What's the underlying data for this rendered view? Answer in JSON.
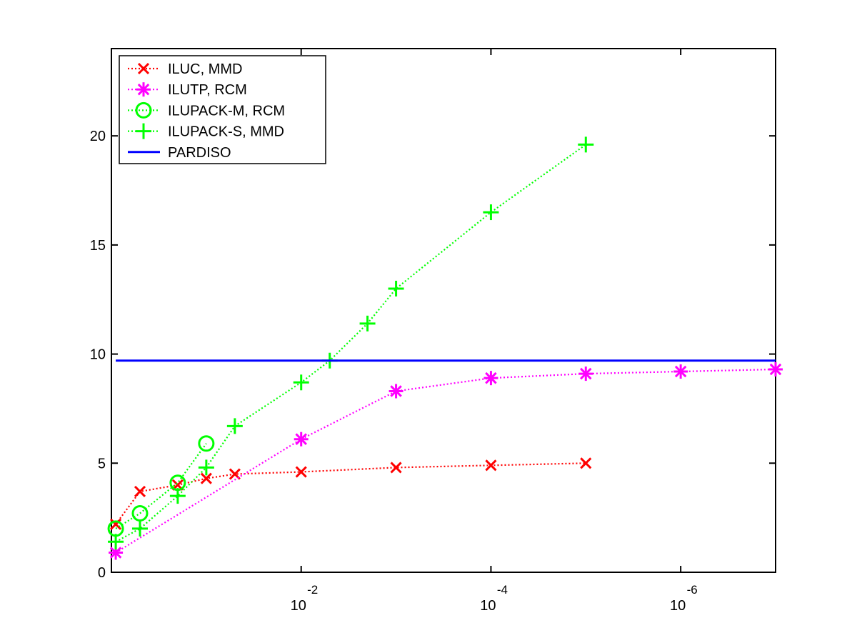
{
  "chart_data": {
    "type": "line",
    "title": "",
    "xlabel": "",
    "ylabel": "",
    "x_scale": "log-reversed",
    "xlim": [
      1,
      1e-07
    ],
    "ylim": [
      0,
      24
    ],
    "grid": false,
    "legend_position": "top-left",
    "y_ticks": [
      {
        "value": 0,
        "label": "0"
      },
      {
        "value": 5,
        "label": "5"
      },
      {
        "value": 10,
        "label": "10"
      },
      {
        "value": 15,
        "label": "15"
      },
      {
        "value": 20,
        "label": "20"
      }
    ],
    "x_ticks": [
      {
        "value": 0.01,
        "base": "10",
        "exponent": "-2"
      },
      {
        "value": 0.0001,
        "base": "10",
        "exponent": "-4"
      },
      {
        "value": 1e-06,
        "base": "10",
        "exponent": "-6"
      }
    ],
    "series": [
      {
        "name": "ILUC, MMD",
        "color": "#ff0000",
        "marker": "x",
        "line": "dotted",
        "x": [
          0.9,
          0.5,
          0.2,
          0.1,
          0.05,
          0.01,
          0.001,
          0.0001,
          1e-05
        ],
        "y": [
          2.2,
          3.7,
          4.0,
          4.3,
          4.5,
          4.6,
          4.8,
          4.9,
          5.0
        ]
      },
      {
        "name": "ILUTP, RCM",
        "color": "#ff00ff",
        "marker": "asterisk",
        "line": "dotted",
        "x": [
          0.9,
          0.01,
          0.001,
          0.0001,
          1e-05,
          1e-06,
          1e-07
        ],
        "y": [
          0.9,
          6.1,
          8.3,
          8.9,
          9.1,
          9.2,
          9.3
        ]
      },
      {
        "name": "ILUPACK-M, RCM",
        "color": "#00ff00",
        "marker": "circle",
        "line": "dotted",
        "x": [
          0.9,
          0.5,
          0.2,
          0.1
        ],
        "y": [
          2.0,
          2.7,
          4.1,
          5.9
        ]
      },
      {
        "name": "ILUPACK-S, MMD",
        "color": "#00ff00",
        "marker": "plus",
        "line": "dotted",
        "x": [
          0.9,
          0.5,
          0.2,
          0.1,
          0.05,
          0.01,
          0.005,
          0.002,
          0.001,
          0.0001,
          1e-05
        ],
        "y": [
          1.4,
          2.0,
          3.5,
          4.8,
          6.7,
          8.7,
          9.7,
          11.4,
          13.0,
          16.5,
          19.6
        ]
      },
      {
        "name": "PARDISO",
        "color": "#0000ff",
        "marker": "none",
        "line": "solid",
        "x": [
          0.9,
          1e-07
        ],
        "y": [
          9.7,
          9.7
        ]
      }
    ]
  }
}
